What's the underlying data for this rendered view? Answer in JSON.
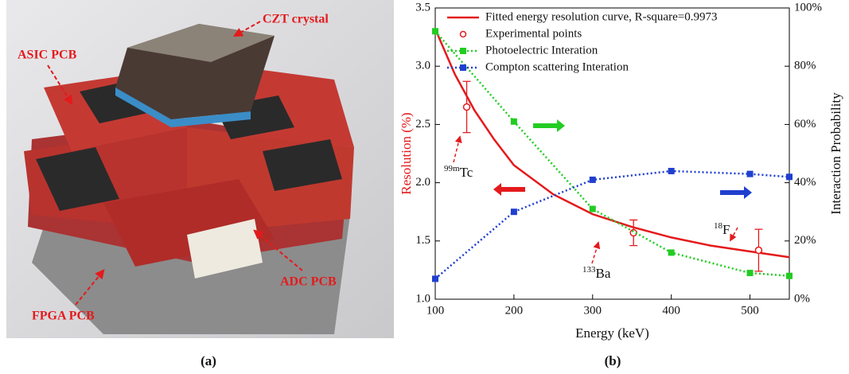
{
  "photo": {
    "labels": [
      "CZT crystal",
      "ASIC PCB",
      "ADC PCB",
      "FPGA PCB"
    ]
  },
  "panel_labels": [
    "(a)",
    "(b)"
  ],
  "chart_data": {
    "type": "line",
    "x_label": "Energy (keV)",
    "y_label": "Resolution (%)",
    "y2_label": "Interaction Probability",
    "xlim": [
      100,
      550
    ],
    "xticks": [
      100,
      200,
      300,
      400,
      500
    ],
    "ylim": [
      1,
      3.5
    ],
    "yticks": [
      {
        "value": 1,
        "label": "1.0"
      },
      1.5,
      {
        "value": 2,
        "label": "2.0"
      },
      2.5,
      {
        "value": 3,
        "label": "3.0"
      },
      3.5
    ],
    "y2lim": [
      0,
      100
    ],
    "y2ticks": [
      {
        "value": 0,
        "label": "0%"
      },
      {
        "value": 20,
        "label": "20%"
      },
      {
        "value": 40,
        "label": "40%"
      },
      {
        "value": 60,
        "label": "60%"
      },
      {
        "value": 80,
        "label": "80%"
      },
      {
        "value": 100,
        "label": "100%"
      }
    ],
    "legend": "upper left",
    "series": [
      {
        "name": "Fitted energy resolution curve, R-square=0.9973",
        "color": "#e41a1c",
        "style": "line",
        "x": [
          100,
          125,
          150,
          175,
          200,
          250,
          300,
          350,
          400,
          450,
          500,
          550
        ],
        "values": [
          3.32,
          2.93,
          2.62,
          2.37,
          2.15,
          1.9,
          1.73,
          1.62,
          1.53,
          1.46,
          1.41,
          1.36
        ]
      },
      {
        "name": "Experimental points",
        "color": "#e41a1c",
        "style": "points",
        "x": [
          140,
          352,
          511
        ],
        "values": [
          2.65,
          1.57,
          1.42
        ],
        "errors": [
          0.22,
          0.11,
          0.18
        ]
      },
      {
        "name": "Photoelectric Interation",
        "color": "#22cc22",
        "style": "dotted",
        "axis": "y2",
        "x": [
          100,
          200,
          300,
          400,
          500,
          550
        ],
        "values": [
          92,
          61,
          31,
          16,
          9,
          8
        ]
      },
      {
        "name": "Compton scattering Interation",
        "color": "#1f3fcf",
        "style": "dotted",
        "axis": "y2",
        "x": [
          100,
          200,
          300,
          400,
          500,
          550
        ],
        "values": [
          7,
          30,
          41,
          44,
          43,
          42
        ]
      }
    ],
    "annotations": [
      {
        "sup": "99m",
        "text": "Tc"
      },
      {
        "sup": "133",
        "text": "Ba"
      },
      {
        "sup": "18",
        "text": "F"
      }
    ]
  }
}
